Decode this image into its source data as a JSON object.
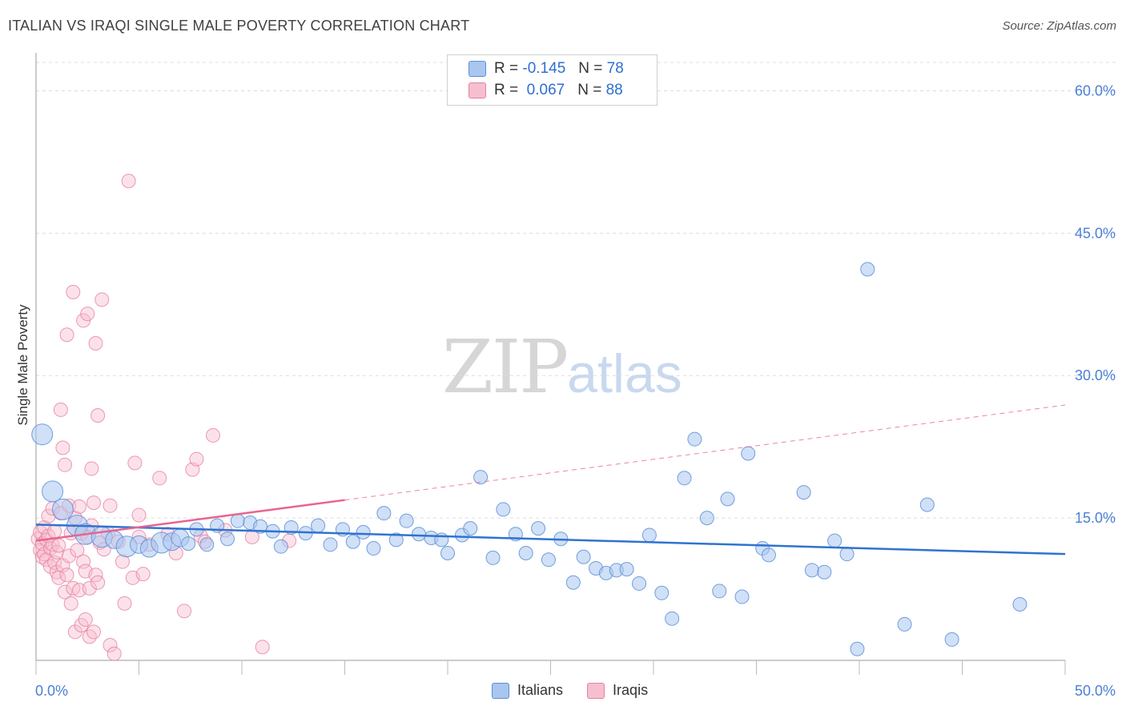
{
  "header": {
    "title": "ITALIAN VS IRAQI SINGLE MALE POVERTY CORRELATION CHART",
    "source": "Source: ZipAtlas.com"
  },
  "watermark": {
    "zip": "ZIP",
    "atlas": "atlas"
  },
  "legend": {
    "rows": [
      {
        "r_label": "R =",
        "r_value": "-0.145",
        "n_label": "N =",
        "n_value": "78"
      },
      {
        "r_label": "R =",
        "r_value": "0.067",
        "n_label": "N =",
        "n_value": "88"
      }
    ]
  },
  "bottom_legend": {
    "italians": "Italians",
    "iraqis": "Iraqis"
  },
  "colors": {
    "italians_fill": "#a9c6ef",
    "italians_stroke": "#5b8fd9",
    "italians_line": "#2f73d0",
    "iraqis_fill": "#f6bfd0",
    "iraqis_stroke": "#e87fa0",
    "iraqis_line": "#e8648e",
    "tick_text": "#4a7fd6",
    "grid": "#dddddd"
  },
  "chart_data": {
    "type": "scatter",
    "title": "ITALIAN VS IRAQI SINGLE MALE POVERTY CORRELATION CHART",
    "xlabel": "",
    "ylabel": "Single Male Poverty",
    "xlim": [
      0,
      50
    ],
    "ylim": [
      0,
      64
    ],
    "x_tick_labels": [
      "0.0%",
      "50.0%"
    ],
    "y_ticks": [
      15,
      30,
      45,
      60
    ],
    "y_tick_labels": [
      "15.0%",
      "30.0%",
      "45.0%",
      "60.0%"
    ],
    "grid": true,
    "legend_position": "top-center",
    "series": [
      {
        "name": "Italians",
        "r": -0.145,
        "n": 78,
        "trend": {
          "x": [
            0,
            50
          ],
          "y": [
            14.3,
            11.2
          ],
          "dashed_from": null
        },
        "points": [
          [
            0.3,
            23.8,
            3
          ],
          [
            0.8,
            17.8,
            3
          ],
          [
            1.3,
            15.9,
            3
          ],
          [
            2.0,
            14.2,
            3
          ],
          [
            2.4,
            13.3,
            3
          ],
          [
            3.2,
            13.0,
            3
          ],
          [
            3.8,
            12.7,
            2
          ],
          [
            4.4,
            12.0,
            3
          ],
          [
            5.0,
            12.2,
            2
          ],
          [
            5.5,
            11.8,
            2
          ],
          [
            6.1,
            12.4,
            3
          ],
          [
            6.6,
            12.5,
            2
          ],
          [
            7.0,
            12.9,
            2
          ],
          [
            7.4,
            12.3,
            1
          ],
          [
            7.8,
            13.8,
            1
          ],
          [
            8.3,
            12.2,
            1
          ],
          [
            8.8,
            14.2,
            1
          ],
          [
            9.3,
            12.8,
            1
          ],
          [
            9.8,
            14.7,
            1
          ],
          [
            10.4,
            14.5,
            1
          ],
          [
            10.9,
            14.1,
            1
          ],
          [
            11.5,
            13.6,
            1
          ],
          [
            11.9,
            12.0,
            1
          ],
          [
            12.4,
            14.0,
            1
          ],
          [
            13.1,
            13.4,
            1
          ],
          [
            13.7,
            14.2,
            1
          ],
          [
            14.3,
            12.2,
            1
          ],
          [
            14.9,
            13.8,
            1
          ],
          [
            15.4,
            12.5,
            1
          ],
          [
            15.9,
            13.5,
            1
          ],
          [
            16.4,
            11.8,
            1
          ],
          [
            16.9,
            15.5,
            1
          ],
          [
            17.5,
            12.7,
            1
          ],
          [
            18.0,
            14.7,
            1
          ],
          [
            18.6,
            13.3,
            1
          ],
          [
            19.2,
            12.9,
            1
          ],
          [
            19.7,
            12.7,
            1
          ],
          [
            20.0,
            11.3,
            1
          ],
          [
            20.7,
            13.2,
            1
          ],
          [
            21.1,
            13.9,
            1
          ],
          [
            21.6,
            19.3,
            1
          ],
          [
            22.2,
            10.8,
            1
          ],
          [
            22.7,
            15.9,
            1
          ],
          [
            23.3,
            13.3,
            1
          ],
          [
            23.8,
            11.3,
            1
          ],
          [
            24.4,
            13.9,
            1
          ],
          [
            24.9,
            10.6,
            1
          ],
          [
            25.5,
            12.8,
            1
          ],
          [
            26.1,
            8.2,
            1
          ],
          [
            26.6,
            10.9,
            1
          ],
          [
            27.2,
            9.7,
            1
          ],
          [
            27.7,
            9.2,
            1
          ],
          [
            28.2,
            9.5,
            1
          ],
          [
            28.7,
            9.6,
            1
          ],
          [
            29.3,
            8.1,
            1
          ],
          [
            29.8,
            13.2,
            1
          ],
          [
            30.4,
            7.1,
            1
          ],
          [
            30.9,
            4.4,
            1
          ],
          [
            31.5,
            19.2,
            1
          ],
          [
            32.0,
            23.3,
            1
          ],
          [
            32.6,
            15.0,
            1
          ],
          [
            33.2,
            7.3,
            1
          ],
          [
            33.6,
            17.0,
            1
          ],
          [
            34.3,
            6.7,
            1
          ],
          [
            34.6,
            21.8,
            1
          ],
          [
            35.3,
            11.8,
            1
          ],
          [
            35.6,
            11.1,
            1
          ],
          [
            37.3,
            17.7,
            1
          ],
          [
            37.7,
            9.5,
            1
          ],
          [
            38.3,
            9.3,
            1
          ],
          [
            38.8,
            12.6,
            1
          ],
          [
            39.4,
            11.2,
            1
          ],
          [
            39.9,
            1.2,
            1
          ],
          [
            40.4,
            41.2,
            1
          ],
          [
            42.2,
            3.8,
            1
          ],
          [
            43.3,
            16.4,
            1
          ],
          [
            44.5,
            2.2,
            1
          ],
          [
            47.8,
            5.9,
            1
          ]
        ]
      },
      {
        "name": "Iraqis",
        "r": 0.067,
        "n": 88,
        "trend": {
          "x": [
            0,
            50
          ],
          "y": [
            12.6,
            26.9
          ],
          "solid_until_x": 15
        },
        "points": [
          [
            0.1,
            12.8,
            1
          ],
          [
            0.2,
            11.6,
            1
          ],
          [
            0.2,
            13.5,
            1
          ],
          [
            0.3,
            10.9,
            1
          ],
          [
            0.3,
            12.3,
            1
          ],
          [
            0.4,
            14.0,
            1
          ],
          [
            0.4,
            11.2,
            1
          ],
          [
            0.5,
            12.7,
            1
          ],
          [
            0.5,
            10.6,
            1
          ],
          [
            0.6,
            13.1,
            1
          ],
          [
            0.6,
            15.2,
            1
          ],
          [
            0.7,
            11.8,
            1
          ],
          [
            0.7,
            9.9,
            1
          ],
          [
            0.8,
            12.2,
            1
          ],
          [
            0.8,
            16.0,
            1
          ],
          [
            0.9,
            10.3,
            1
          ],
          [
            0.9,
            13.6,
            1
          ],
          [
            1.0,
            9.3,
            1
          ],
          [
            1.0,
            11.4,
            1
          ],
          [
            1.1,
            8.7,
            1
          ],
          [
            1.1,
            12.1,
            1
          ],
          [
            1.2,
            15.5,
            1
          ],
          [
            1.2,
            26.4,
            1
          ],
          [
            1.3,
            22.4,
            1
          ],
          [
            1.3,
            10.0,
            1
          ],
          [
            1.4,
            20.6,
            1
          ],
          [
            1.4,
            7.2,
            1
          ],
          [
            1.5,
            34.3,
            1
          ],
          [
            1.5,
            9.0,
            1
          ],
          [
            1.6,
            16.3,
            1
          ],
          [
            1.6,
            11.0,
            1
          ],
          [
            1.7,
            6.0,
            1
          ],
          [
            1.7,
            13.4,
            1
          ],
          [
            1.8,
            38.8,
            1
          ],
          [
            1.8,
            7.6,
            1
          ],
          [
            1.9,
            15.0,
            1
          ],
          [
            1.9,
            3.0,
            1
          ],
          [
            2.0,
            11.6,
            1
          ],
          [
            2.1,
            7.4,
            1
          ],
          [
            2.1,
            16.2,
            1
          ],
          [
            2.2,
            3.7,
            1
          ],
          [
            2.2,
            13.4,
            1
          ],
          [
            2.3,
            35.8,
            1
          ],
          [
            2.3,
            10.4,
            1
          ],
          [
            2.4,
            9.4,
            1
          ],
          [
            2.4,
            4.3,
            1
          ],
          [
            2.5,
            36.5,
            1
          ],
          [
            2.5,
            13.0,
            1
          ],
          [
            2.6,
            2.5,
            1
          ],
          [
            2.6,
            7.6,
            1
          ],
          [
            2.7,
            20.2,
            1
          ],
          [
            2.7,
            14.2,
            1
          ],
          [
            2.8,
            3.0,
            1
          ],
          [
            2.8,
            16.6,
            1
          ],
          [
            2.9,
            33.4,
            1
          ],
          [
            2.9,
            9.0,
            1
          ],
          [
            3.0,
            25.8,
            1
          ],
          [
            3.0,
            8.2,
            1
          ],
          [
            3.1,
            12.4,
            1
          ],
          [
            3.2,
            38.0,
            1
          ],
          [
            3.3,
            11.7,
            1
          ],
          [
            3.5,
            13.4,
            1
          ],
          [
            3.6,
            1.6,
            1
          ],
          [
            3.6,
            16.3,
            1
          ],
          [
            3.8,
            0.7,
            1
          ],
          [
            4.0,
            12.5,
            1
          ],
          [
            4.2,
            10.4,
            1
          ],
          [
            4.3,
            6.0,
            1
          ],
          [
            4.5,
            50.5,
            1
          ],
          [
            4.7,
            8.7,
            1
          ],
          [
            4.8,
            20.8,
            1
          ],
          [
            5.0,
            13.0,
            1
          ],
          [
            5.0,
            15.3,
            1
          ],
          [
            5.2,
            9.1,
            1
          ],
          [
            5.5,
            12.2,
            1
          ],
          [
            6.0,
            19.2,
            1
          ],
          [
            6.4,
            13.3,
            1
          ],
          [
            6.8,
            11.3,
            1
          ],
          [
            7.2,
            5.2,
            1
          ],
          [
            7.6,
            20.1,
            1
          ],
          [
            7.8,
            21.2,
            1
          ],
          [
            8.0,
            13.1,
            1
          ],
          [
            8.2,
            12.5,
            1
          ],
          [
            8.6,
            23.7,
            1
          ],
          [
            9.2,
            13.7,
            1
          ],
          [
            10.5,
            13.0,
            1
          ],
          [
            11.0,
            1.4,
            1
          ],
          [
            12.3,
            12.6,
            1
          ]
        ]
      }
    ]
  }
}
